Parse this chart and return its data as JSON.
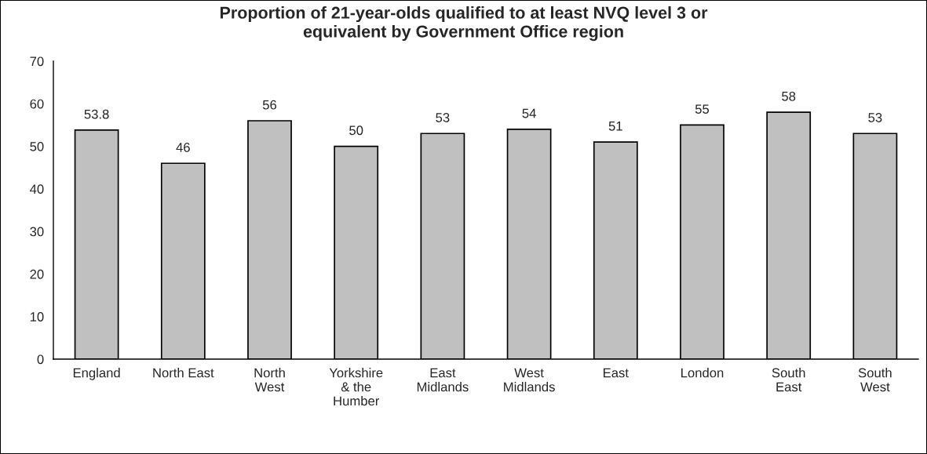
{
  "chart_data": {
    "type": "bar",
    "title": "Proportion of 21-year-olds qualified to at least NVQ level 3 or\nequivalent by Government Office region",
    "categories": [
      "England",
      "North East",
      "North\nWest",
      "Yorkshire\n& the\nHumber",
      "East\nMidlands",
      "West\nMidlands",
      "East",
      "London",
      "South\nEast",
      "South\nWest"
    ],
    "values": [
      53.8,
      46,
      56,
      50,
      53,
      54,
      51,
      55,
      58,
      53
    ],
    "color": "#c0c0c0",
    "ylim": [
      0,
      70
    ],
    "yticks": [
      0,
      10,
      20,
      30,
      40,
      50,
      60,
      70
    ],
    "data_labels": true,
    "grid": false
  }
}
